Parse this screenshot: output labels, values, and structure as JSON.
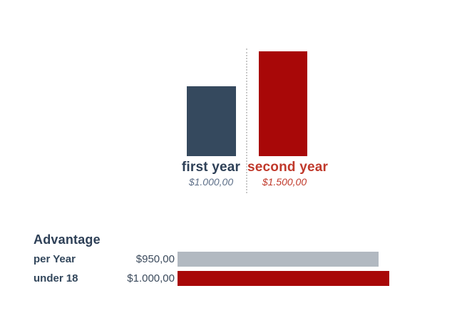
{
  "page": {
    "background": "#ffffff"
  },
  "chart_data": [
    {
      "type": "bar",
      "orientation": "vertical",
      "title": "",
      "categories": [
        "first year",
        "second year"
      ],
      "values": [
        1000,
        1500
      ],
      "value_labels": [
        "$1.000,00",
        "$1.500,00"
      ],
      "bar_colors": [
        "#35495e",
        "#a80808"
      ],
      "category_label_colors": [
        "#2e4057",
        "#c0392b"
      ],
      "value_label_colors": [
        "#5d6f88",
        "#c0392b"
      ],
      "layout": {
        "bars_bottom_aligned": true,
        "separator_dotted_line": true,
        "divider_color": "#c9c9c9",
        "value_axis_hidden": true
      }
    },
    {
      "type": "bar",
      "orientation": "horizontal",
      "title": "Advantage",
      "categories": [
        "per Year",
        "under 18"
      ],
      "values": [
        950,
        1000
      ],
      "value_labels": [
        "$950,00",
        "$1.000,00"
      ],
      "bar_colors": [
        "#b2b9c1",
        "#a80808"
      ],
      "title_color": "#2e4057",
      "category_label_color": "#33475c",
      "value_label_color": "#3b4a5c",
      "layout": {
        "value_axis_hidden": true,
        "labels_left_values_right_aligned_before_bars": true
      }
    }
  ]
}
